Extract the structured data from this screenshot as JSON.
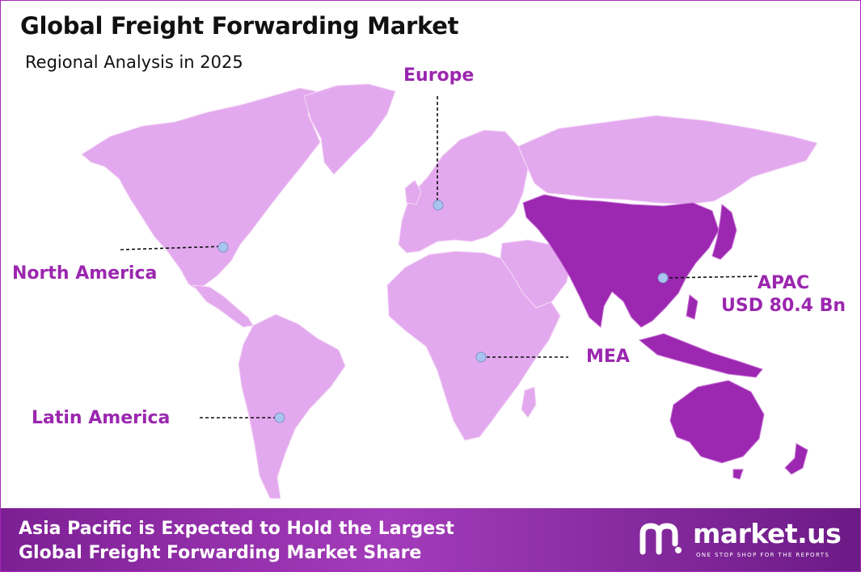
{
  "header": {
    "title": "Global Freight Forwarding Market",
    "subtitle": "Regional Analysis in 2025"
  },
  "regions": [
    {
      "name": "North America",
      "highlighted": false
    },
    {
      "name": "Europe",
      "highlighted": false
    },
    {
      "name": "APAC",
      "value": "USD 80.4 Bn",
      "highlighted": true
    },
    {
      "name": "MEA",
      "highlighted": false
    },
    {
      "name": "Latin America",
      "highlighted": false
    }
  ],
  "footer": {
    "line1": "Asia Pacific is Expected to Hold the Largest",
    "line2": "Global Freight Forwarding Market Share"
  },
  "brand": {
    "name": "market.us",
    "tagline": "ONE STOP SHOP FOR THE REPORTS"
  },
  "colors": {
    "land": "#e3a9ee",
    "highlight": "#9c27b0",
    "label": "#9b27af",
    "marker": "#a9c4ee"
  }
}
